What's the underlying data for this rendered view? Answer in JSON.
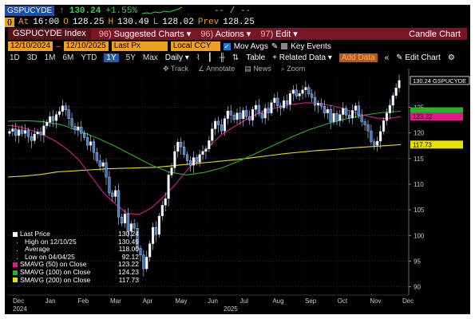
{
  "quote": {
    "ticker": "GSPUCYDE",
    "arrow": "↑",
    "last": "130.24",
    "change": "+1.55%",
    "rt_placeholder": "-- / --"
  },
  "quote2": {
    "at_label": "At",
    "time": "16:00",
    "o_label": "O",
    "open": "128.25",
    "h_label": "H",
    "high": "130.49",
    "l_label": "L",
    "low": "128.02",
    "prev_label": "Prev",
    "prev": "128.25"
  },
  "menu": {
    "title": "GSPUCYDE Index",
    "items": [
      {
        "num": "96)",
        "label": "Suggested Charts ▾"
      },
      {
        "num": "96)",
        "label": "Actions ▾"
      },
      {
        "num": "97)",
        "label": "Edit ▾"
      }
    ],
    "right": "Candle Chart"
  },
  "controls": {
    "start_date": "12/10/2024",
    "end_date": "12/10/2025",
    "field": "Last Px",
    "currency": "Local CCY",
    "mov_avgs": "Mov Avgs",
    "key_events": "Key Events"
  },
  "periods": [
    "1D",
    "3D",
    "1M",
    "6M",
    "YTD",
    "1Y",
    "5Y",
    "Max"
  ],
  "selected_period": "1Y",
  "period_tools": {
    "interval": "Daily ▾",
    "table": "Table",
    "related": "+ Related Data ▾",
    "add_data": "Add Data",
    "collapse": "«",
    "edit_chart": "Edit Chart",
    "settings_icon": "gear-icon"
  },
  "chart_tools": [
    "Track",
    "Annotate",
    "News",
    "Zoom"
  ],
  "chart_data": {
    "type": "candlestick",
    "x_labels": [
      "Dec",
      "Jan",
      "Feb",
      "Mar",
      "Apr",
      "May",
      "Jun",
      "Jul",
      "Aug",
      "Sep",
      "Oct",
      "Nov",
      "Dec"
    ],
    "x_sublabels": {
      "Dec": "2024",
      "Jun": "2025"
    },
    "y_ticks": [
      90,
      95,
      100,
      105,
      110,
      115,
      120,
      125
    ],
    "ylim": [
      89,
      131
    ],
    "close": [
      120.3,
      120.8,
      119.5,
      120.6,
      119.9,
      120.5,
      119.3,
      118.5,
      119.8,
      120.2,
      119.6,
      121.4,
      122.1,
      123.2,
      122.4,
      123.6,
      124.2,
      125.3,
      124.5,
      122.8,
      121.3,
      120.6,
      121.2,
      119.9,
      119.1,
      117.6,
      118.3,
      116.2,
      114.6,
      113.5,
      114.2,
      111.4,
      108.3,
      107.6,
      108.8,
      103.6,
      102.4,
      104.2,
      100.8,
      102.3,
      101.4,
      97.5,
      96.2,
      93.5,
      95.8,
      98.4,
      101.6,
      100.2,
      103.8,
      105.9,
      107.2,
      111.8,
      113.2,
      116.4,
      118.2,
      117.3,
      115.8,
      114.6,
      113.7,
      115.2,
      114.3,
      115.8,
      116.4,
      116.9,
      118.5,
      120.8,
      122.3,
      121.6,
      120.4,
      122.8,
      124.3,
      123.5,
      122.6,
      123.9,
      122.8,
      124.4,
      123.2,
      122.5,
      124.6,
      125.4,
      123.8,
      122.9,
      124.8,
      123.9,
      125.9,
      126.8,
      125.3,
      124.9,
      126.3,
      125.6,
      127.7,
      128.4,
      127.2,
      127.7,
      128.4,
      128.9,
      127.6,
      126.9,
      125.4,
      125.8,
      125.2,
      123.9,
      124.6,
      122.2,
      123.8,
      122.4,
      123.6,
      124.8,
      123.5,
      122.9,
      124.4,
      125.3,
      123.4,
      122.2,
      121.6,
      120.4,
      118.3,
      117.6,
      118.4,
      120.3,
      122.4,
      123.9,
      125.4,
      127.3,
      128.8,
      130.24
    ],
    "ma50": [
      121.5,
      121.2,
      120.5,
      119.6,
      118.4,
      116.8,
      114.6,
      111.5,
      108.4,
      106.2,
      104.3,
      104.1,
      105.3,
      107.4,
      109.8,
      112.6,
      115.3,
      117.6,
      119.8,
      121.2,
      122.6,
      123.8,
      124.6,
      125.2,
      125.6,
      125.9,
      125.8,
      125.4,
      124.9,
      124.1,
      123.4,
      122.9,
      122.8,
      123.22
    ],
    "ma100": [
      122.3,
      122.4,
      122.2,
      121.6,
      120.4,
      119.0,
      117.4,
      115.6,
      113.8,
      112.4,
      111.8,
      112.3,
      113.2,
      114.6,
      116.2,
      117.8,
      119.4,
      120.8,
      121.9,
      122.8,
      123.5,
      124.0,
      124.23
    ],
    "ma200": [
      111.4,
      111.6,
      111.9,
      112.4,
      112.6,
      112.8,
      113.0,
      113.1,
      113.2,
      113.3,
      113.6,
      113.9,
      114.2,
      114.5,
      114.8,
      115.2,
      115.6,
      116.0,
      116.3,
      116.6,
      116.8,
      117.1,
      117.3,
      117.5,
      117.73
    ],
    "series": [
      {
        "name": "SMAVG (50)  on Close",
        "value": "123.22"
      },
      {
        "name": "SMAVG (100)  on Close",
        "value": "124.23"
      },
      {
        "name": "SMAVG (200)  on Close",
        "value": "117.73"
      }
    ],
    "price_tag": "130.24 GSPUCYDE",
    "ma_tags": [
      "123.22",
      "117.73"
    ]
  },
  "legend": [
    {
      "key": "Last Price",
      "value": "130.24",
      "swatch": "#ffffff",
      "kind": "box"
    },
    {
      "key": "High on 12/10/25",
      "value": "130.49",
      "swatch": "#ffffff",
      "kind": "sub"
    },
    {
      "key": "Average",
      "value": "118.00",
      "swatch": "#ffffff",
      "kind": "sub"
    },
    {
      "key": "Low on 04/04/25",
      "value": "92.12",
      "swatch": "#ffffff",
      "kind": "sub"
    },
    {
      "key": "SMAVG (50)  on Close",
      "value": "123.22",
      "swatch": "#e0198f",
      "kind": "box"
    },
    {
      "key": "SMAVG (100)  on Close",
      "value": "124.23",
      "swatch": "#28b228",
      "kind": "box"
    },
    {
      "key": "SMAVG (200)  on Close",
      "value": "117.73",
      "swatch": "#e8e000",
      "kind": "box"
    }
  ],
  "colors": {
    "ma50": "#e0198f",
    "ma100": "#28b228",
    "ma200": "#e8e000",
    "accent": "#f0a020"
  }
}
